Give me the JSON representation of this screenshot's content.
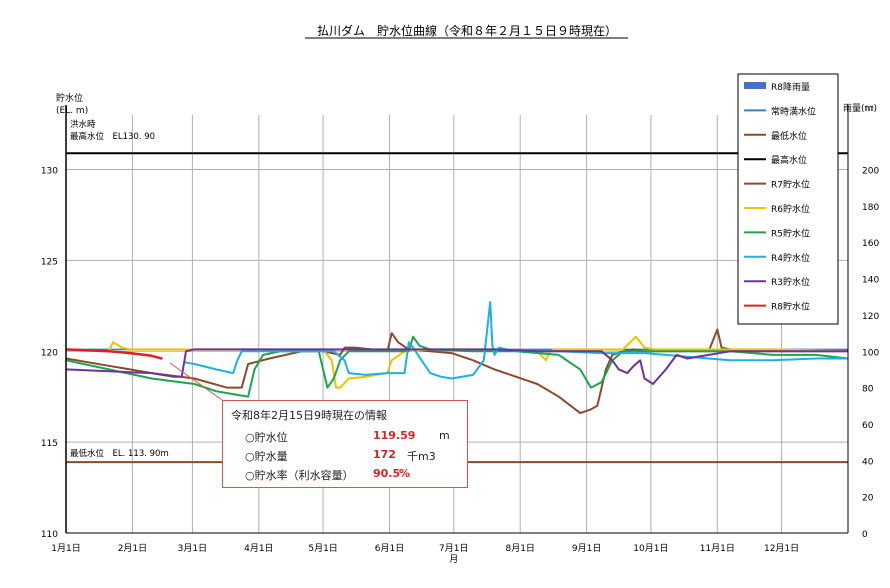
{
  "title": "払川ダム　貯水位曲線（令和８年２月１５日９時現在）",
  "left_axis": {
    "label_line1": "貯水位",
    "label_line2": "(EL. m)",
    "ylim": [
      110,
      133
    ],
    "ticks": [
      110,
      115,
      120,
      125,
      130
    ]
  },
  "right_axis": {
    "label": "雨量(㎜)",
    "ylim": [
      0,
      230
    ],
    "ticks": [
      0,
      20,
      40,
      60,
      80,
      100,
      120,
      140,
      160,
      180,
      200
    ]
  },
  "x_axis": {
    "ticks": [
      "1月1日",
      "2月1日",
      "3月1日",
      "4月1日",
      "5月1日",
      "6月1日",
      "7月1日",
      "8月1日",
      "9月1日",
      "10月1日",
      "11月1日",
      "12月1日"
    ],
    "tick_days": [
      0,
      31,
      59,
      90,
      120,
      151,
      181,
      212,
      243,
      273,
      304,
      334
    ],
    "xlim": [
      0,
      365
    ],
    "month_label": "月"
  },
  "reference_lines": {
    "flood_label_line1": "洪水時",
    "flood_label_line2": "最高水位　EL130. 90",
    "flood_value": 130.9,
    "min_label": "最低水位　EL. 113. 90m",
    "min_value": 113.9
  },
  "legend": [
    {
      "label": "R8降雨量",
      "color": "#4472c4",
      "type": "bar"
    },
    {
      "label": "常時満水位",
      "color": "#2e86c1",
      "type": "line"
    },
    {
      "label": "最低水位",
      "color": "#8b4a2b",
      "type": "line"
    },
    {
      "label": "最高水位",
      "color": "#000000",
      "type": "line"
    },
    {
      "label": "R7貯水位",
      "color": "#8b4a2b",
      "type": "line"
    },
    {
      "label": "R6貯水位",
      "color": "#f2c200",
      "type": "line"
    },
    {
      "label": "R5貯水位",
      "color": "#1aa64b",
      "type": "line"
    },
    {
      "label": "R4貯水位",
      "color": "#1ab0e8",
      "type": "line"
    },
    {
      "label": "R3貯水位",
      "color": "#7030a0",
      "type": "line"
    },
    {
      "label": "R8貯水位",
      "color": "#e02020",
      "type": "line"
    }
  ],
  "info": {
    "title": "令和8年2月15日9時現在の情報",
    "level_label": "○貯水位",
    "level_value": "119.59",
    "level_unit": "m",
    "volume_label": "○貯水量",
    "volume_value": "172",
    "volume_unit": "千m3",
    "rate_label": "○貯水率（利水容量）",
    "rate_value": "90.5",
    "rate_unit": "%"
  },
  "chart_data": {
    "type": "line",
    "ylabel": "貯水位",
    "y2label": "雨量(㎜)",
    "ylim": [
      110,
      133
    ],
    "y2lim": [
      0,
      230
    ],
    "xlim": [
      0,
      365
    ],
    "series": [
      {
        "name": "常時満水位",
        "color": "#2e86c1",
        "x": [
          0,
          365
        ],
        "y": [
          120.1,
          120.1
        ]
      },
      {
        "name": "最低水位",
        "color": "#8b4a2b",
        "x": [
          0,
          365
        ],
        "y": [
          113.9,
          113.9
        ]
      },
      {
        "name": "最高水位",
        "color": "#000000",
        "x": [
          0,
          365
        ],
        "y": [
          130.9,
          130.9
        ]
      },
      {
        "name": "R7貯水位",
        "color": "#8b4a2b",
        "x": [
          0,
          20,
          40,
          60,
          75,
          82,
          85,
          95,
          110,
          120,
          128,
          130,
          135,
          150,
          152,
          155,
          160,
          170,
          180,
          190,
          200,
          210,
          220,
          230,
          240,
          245,
          248,
          252,
          255,
          260,
          265,
          270,
          280,
          290,
          300,
          304,
          306,
          310,
          320,
          330,
          340,
          350,
          365
        ],
        "y": [
          119.6,
          119.2,
          118.8,
          118.5,
          118.0,
          118.0,
          119.3,
          119.6,
          120.0,
          120.0,
          119.8,
          120.2,
          120.2,
          120.0,
          121.0,
          120.5,
          120.1,
          120.0,
          119.9,
          119.5,
          119.0,
          118.6,
          118.2,
          117.5,
          116.6,
          116.8,
          117.0,
          119.0,
          119.8,
          120.0,
          120.1,
          120.0,
          120.0,
          120.0,
          120.0,
          121.2,
          120.2,
          120.1,
          120.0,
          120.0,
          120.0,
          120.0,
          120.0
        ]
      },
      {
        "name": "R6貯水位",
        "color": "#f2c200",
        "x": [
          20,
          22,
          26,
          30,
          60,
          90,
          120,
          124,
          126,
          128,
          132,
          140,
          150,
          152,
          158,
          170,
          180,
          200,
          220,
          224,
          226,
          228,
          232,
          240,
          260,
          266,
          270,
          275,
          300,
          330,
          365
        ],
        "y": [
          120.0,
          120.5,
          120.2,
          120.1,
          120.1,
          120.1,
          120.1,
          119.5,
          118.0,
          118.0,
          118.5,
          118.6,
          118.8,
          119.5,
          120.0,
          120.1,
          120.1,
          120.1,
          120.0,
          119.5,
          120.0,
          120.1,
          120.1,
          120.1,
          120.1,
          120.8,
          120.2,
          120.1,
          120.1,
          120.1,
          120.0
        ]
      },
      {
        "name": "R5貯水位",
        "color": "#1aa64b",
        "x": [
          0,
          20,
          40,
          60,
          70,
          80,
          85,
          88,
          92,
          100,
          110,
          118,
          122,
          125,
          128,
          132,
          140,
          150,
          160,
          162,
          165,
          170,
          190,
          200,
          210,
          230,
          240,
          245,
          250,
          255,
          260,
          270,
          290,
          310,
          330,
          350,
          365
        ],
        "y": [
          119.5,
          119.0,
          118.5,
          118.2,
          117.8,
          117.6,
          117.5,
          119.0,
          119.8,
          120.0,
          120.0,
          120.0,
          118.0,
          118.5,
          119.5,
          120.0,
          120.0,
          120.0,
          120.0,
          120.8,
          120.3,
          120.1,
          120.0,
          120.0,
          120.0,
          119.8,
          119.0,
          118.0,
          118.3,
          119.5,
          120.0,
          120.0,
          120.0,
          120.0,
          119.8,
          119.8,
          119.6
        ]
      },
      {
        "name": "R4貯水位",
        "color": "#1ab0e8",
        "x": [
          55,
          60,
          70,
          78,
          80,
          82,
          90,
          110,
          125,
          130,
          132,
          140,
          150,
          158,
          160,
          162,
          166,
          170,
          175,
          180,
          190,
          195,
          198,
          199,
          200,
          202,
          210,
          230,
          250,
          270,
          280,
          290,
          310,
          330,
          350,
          365
        ],
        "y": [
          119.4,
          119.3,
          119.0,
          118.8,
          119.5,
          120.0,
          120.0,
          120.0,
          120.0,
          119.5,
          118.8,
          118.7,
          118.8,
          118.8,
          120.5,
          120.2,
          119.5,
          118.8,
          118.6,
          118.5,
          118.7,
          119.5,
          122.7,
          120.3,
          119.8,
          120.2,
          120.0,
          120.0,
          119.9,
          119.9,
          119.8,
          119.7,
          119.5,
          119.5,
          119.6,
          119.6
        ]
      },
      {
        "name": "R3貯水位",
        "color": "#7030a0",
        "x": [
          0,
          20,
          40,
          50,
          54,
          56,
          60,
          80,
          100,
          120,
          150,
          170,
          180,
          200,
          220,
          240,
          250,
          255,
          258,
          262,
          265,
          268,
          270,
          274,
          280,
          285,
          290,
          300,
          310,
          320,
          340,
          365
        ],
        "y": [
          119.0,
          118.9,
          118.8,
          118.6,
          118.6,
          120.0,
          120.1,
          120.1,
          120.1,
          120.1,
          120.1,
          120.1,
          120.1,
          120.1,
          120.0,
          120.0,
          120.0,
          119.5,
          119.0,
          118.8,
          119.2,
          119.5,
          118.5,
          118.2,
          119.0,
          119.8,
          119.6,
          119.8,
          120.0,
          120.0,
          120.0,
          120.0
        ]
      },
      {
        "name": "R8貯水位",
        "color": "#e02020",
        "x": [
          0,
          10,
          20,
          30,
          40,
          45
        ],
        "y": [
          120.1,
          120.05,
          120.0,
          119.9,
          119.75,
          119.59
        ]
      }
    ]
  }
}
